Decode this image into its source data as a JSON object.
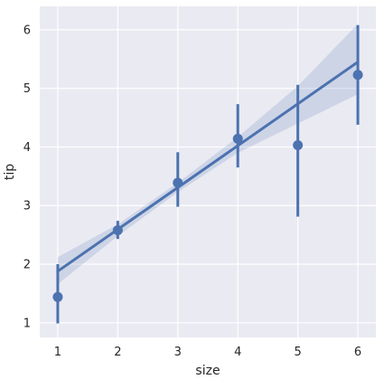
{
  "chart_data": {
    "type": "scatter",
    "xlabel": "size",
    "ylabel": "tip",
    "x_ticks": [
      1,
      2,
      3,
      4,
      5,
      6
    ],
    "y_ticks": [
      1,
      2,
      3,
      4,
      5,
      6
    ],
    "xlim": [
      0.7,
      6.3
    ],
    "ylim": [
      0.75,
      6.4
    ],
    "grid": true,
    "points": [
      {
        "x": 1,
        "y": 1.44,
        "ci": [
          0.99,
          2.0
        ]
      },
      {
        "x": 2,
        "y": 2.58,
        "ci": [
          2.43,
          2.74
        ]
      },
      {
        "x": 3,
        "y": 3.39,
        "ci": [
          2.98,
          3.91
        ]
      },
      {
        "x": 4,
        "y": 4.14,
        "ci": [
          3.65,
          4.73
        ]
      },
      {
        "x": 5,
        "y": 4.03,
        "ci": [
          2.81,
          5.06
        ]
      },
      {
        "x": 6,
        "y": 5.23,
        "ci": [
          4.38,
          6.08
        ]
      }
    ],
    "regression": {
      "x": [
        1,
        6
      ],
      "y": [
        1.88,
        5.45
      ],
      "ci_band": [
        {
          "x": 1,
          "lower": 1.66,
          "upper": 2.12
        },
        {
          "x": 2,
          "lower": 2.48,
          "upper": 2.68
        },
        {
          "x": 3,
          "lower": 3.23,
          "upper": 3.39
        },
        {
          "x": 4,
          "lower": 3.9,
          "upper": 4.17
        },
        {
          "x": 5,
          "lower": 4.4,
          "upper": 5.04
        },
        {
          "x": 6,
          "lower": 4.9,
          "upper": 6.1
        }
      ]
    },
    "colors": {
      "background": "#eaeaf2",
      "grid": "#ffffff",
      "series": "#4c72b0",
      "band": "#4c72b0"
    }
  }
}
